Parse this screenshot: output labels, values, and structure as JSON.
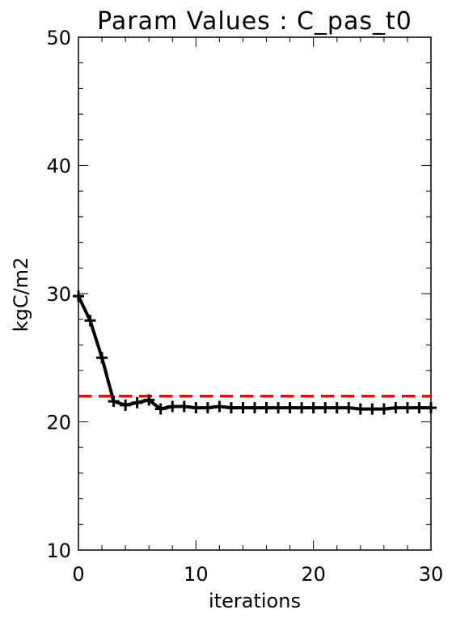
{
  "chart_data": {
    "type": "line",
    "title": "Param Values : C_pas_t0",
    "xlabel": "iterations",
    "ylabel": "kgC/m2",
    "xlim": [
      0,
      30
    ],
    "ylim": [
      10,
      50
    ],
    "x_ticks": [
      "0",
      "10",
      "20",
      "30"
    ],
    "y_ticks": [
      "10",
      "20",
      "30",
      "40",
      "50"
    ],
    "grid": false,
    "series": [
      {
        "x": [
          0,
          1,
          2,
          3,
          4,
          5,
          6,
          7,
          8,
          9,
          10,
          11,
          12,
          13,
          14,
          15,
          16,
          17,
          18,
          19,
          20,
          21,
          22,
          23,
          24,
          25,
          26,
          27,
          28,
          29,
          30
        ],
        "values": [
          29.8,
          27.9,
          25.0,
          21.6,
          21.3,
          21.5,
          21.7,
          21.0,
          21.2,
          21.2,
          21.1,
          21.1,
          21.2,
          21.1,
          21.1,
          21.1,
          21.1,
          21.1,
          21.1,
          21.1,
          21.1,
          21.1,
          21.1,
          21.1,
          21.0,
          21.0,
          21.0,
          21.1,
          21.1,
          21.1,
          21.1
        ],
        "color": "#000000",
        "marker": "plus"
      }
    ],
    "reference_line": {
      "y": 22.0,
      "color": "#ff0000",
      "style": "dashed"
    }
  }
}
